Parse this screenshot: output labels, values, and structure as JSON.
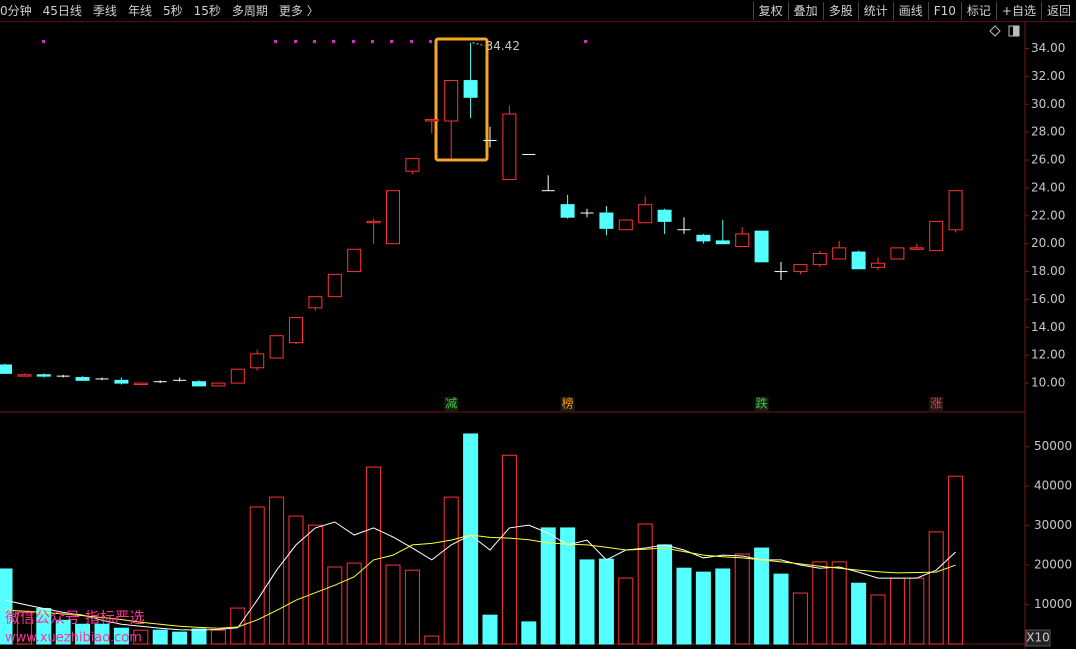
{
  "toolbar": {
    "left": [
      "0分钟",
      "45日线",
      "季线",
      "年线",
      "5秒",
      "15秒",
      "多周期",
      "更多 〉"
    ],
    "right": [
      "复权",
      "叠加",
      "多股",
      "统计",
      "画线",
      "F10",
      "标记",
      "+自选",
      "返回"
    ]
  },
  "watermark": [
    "微信公众号 指标严选",
    "www.xuezhibiao.com"
  ],
  "volume_scale_label": "X10",
  "chart_data": [
    {
      "type": "candlestick",
      "open": [
        11.3,
        10.5,
        10.6,
        10.5,
        10.4,
        10.3,
        10.2,
        9.9,
        10.1,
        10.2,
        10.1,
        9.8,
        10.0,
        11.1,
        11.8,
        12.9,
        15.4,
        16.2,
        18.0,
        21.5,
        20.0,
        25.2,
        28.8,
        28.8,
        31.7,
        27.4,
        24.6,
        26.4,
        23.8,
        22.8,
        22.2,
        22.2,
        21.0,
        21.5,
        22.4,
        21.0,
        20.6,
        20.2,
        19.8,
        20.9,
        18.0,
        18.0,
        18.5,
        18.9,
        19.4,
        18.3,
        18.9,
        19.6,
        19.5,
        21.0
      ],
      "high": [
        11.4,
        10.7,
        10.7,
        10.6,
        10.5,
        10.4,
        10.4,
        10.0,
        10.2,
        10.4,
        10.2,
        10.0,
        11.0,
        12.4,
        13.4,
        14.7,
        16.2,
        17.8,
        19.6,
        21.8,
        23.8,
        26.1,
        28.9,
        31.7,
        34.42,
        28.4,
        29.9,
        26.4,
        24.9,
        23.5,
        22.5,
        22.7,
        21.7,
        23.4,
        22.5,
        21.9,
        20.7,
        21.7,
        21.2,
        20.9,
        18.7,
        18.5,
        19.5,
        20.2,
        19.5,
        19.0,
        19.7,
        20.0,
        21.6,
        23.8
      ],
      "low": [
        10.7,
        10.5,
        10.4,
        10.4,
        10.2,
        10.2,
        9.9,
        9.9,
        10.0,
        10.1,
        9.8,
        9.8,
        10.0,
        10.9,
        11.8,
        12.8,
        15.2,
        16.2,
        18.0,
        20.0,
        20.0,
        25.0,
        27.9,
        26.1,
        29.0,
        26.9,
        24.6,
        26.4,
        23.8,
        21.8,
        21.9,
        20.6,
        21.0,
        21.5,
        20.7,
        20.7,
        20.0,
        20.0,
        19.8,
        18.7,
        17.4,
        17.8,
        18.3,
        18.9,
        18.2,
        18.1,
        18.9,
        19.6,
        19.5,
        20.8
      ],
      "close": [
        10.7,
        10.6,
        10.5,
        10.5,
        10.2,
        10.3,
        10.0,
        10.0,
        10.1,
        10.2,
        9.8,
        10.0,
        11.0,
        12.1,
        13.4,
        14.7,
        16.2,
        17.8,
        19.6,
        21.6,
        23.8,
        26.1,
        28.9,
        31.7,
        30.5,
        27.4,
        29.3,
        26.4,
        23.8,
        21.9,
        22.2,
        21.1,
        21.7,
        22.8,
        21.6,
        21.0,
        20.2,
        20.0,
        20.7,
        18.7,
        18.0,
        18.5,
        19.3,
        19.7,
        18.2,
        18.6,
        19.7,
        19.7,
        21.6,
        23.8
      ],
      "max_label": "34.42",
      "up_color": "#ff3232",
      "down_color": "#54ffff",
      "flat_color": "#ffffff",
      "signals": [
        null,
        null,
        null,
        null,
        null,
        null,
        null,
        null,
        null,
        null,
        null,
        null,
        null,
        null,
        null,
        null,
        null,
        null,
        null,
        null,
        null,
        null,
        null,
        {
          "label": "减",
          "color": "#33cc33"
        },
        null,
        null,
        null,
        null,
        null,
        {
          "label": "榜",
          "color": "#ff9900"
        },
        null,
        null,
        null,
        null,
        null,
        null,
        null,
        null,
        null,
        {
          "label": "跌",
          "color": "#33cc33"
        },
        null,
        null,
        null,
        null,
        null,
        null,
        null,
        null,
        {
          "label": "涨",
          "color": "#ff3232"
        },
        null
      ],
      "ylim": [
        8,
        35.9
      ],
      "yticks": [
        {
          "value": 10,
          "label": "10.00"
        },
        {
          "value": 12,
          "label": "12.00"
        },
        {
          "value": 14,
          "label": "14.00"
        },
        {
          "value": 16,
          "label": "16.00"
        },
        {
          "value": 18,
          "label": "18.00"
        },
        {
          "value": 20,
          "label": "20.00"
        },
        {
          "value": 22,
          "label": "22.00"
        },
        {
          "value": 24,
          "label": "24.00"
        },
        {
          "value": 26,
          "label": "26.00"
        },
        {
          "value": 28,
          "label": "28.00"
        },
        {
          "value": 30,
          "label": "30.00"
        },
        {
          "value": 32,
          "label": "32.00"
        },
        {
          "value": 34,
          "label": "34.00"
        }
      ]
    },
    {
      "type": "bar",
      "values": [
        19000,
        8000,
        9000,
        6000,
        5000,
        5000,
        4000,
        3500,
        3500,
        3000,
        3800,
        3500,
        9100,
        34700,
        37200,
        32400,
        30100,
        19500,
        20500,
        44800,
        20000,
        18700,
        2000,
        37200,
        53200,
        7300,
        47800,
        5600,
        29400,
        29400,
        21300,
        21500,
        16700,
        30400,
        25100,
        19200,
        18200,
        19000,
        22800,
        24300,
        17700,
        12900,
        20800,
        20800,
        15400,
        12400,
        16700,
        16700,
        28400,
        42500
      ],
      "lines": [
        {
          "color": "#ffffff",
          "values": [
            11100,
            10000,
            9000,
            8000,
            7300,
            6000,
            5000,
            4500,
            4000,
            3600,
            3500,
            3700,
            4100,
            11100,
            18700,
            25100,
            29400,
            30900,
            27600,
            29400,
            27100,
            24300,
            21300,
            25100,
            27600,
            23800,
            29400,
            30100,
            28100,
            25100,
            26300,
            21300,
            23800,
            24300,
            25100,
            23800,
            21800,
            22500,
            22300,
            21300,
            21300,
            20000,
            19200,
            19500,
            18200,
            16700,
            16700,
            16700,
            18700,
            23300
          ]
        },
        {
          "color": "#ffff33",
          "values": [
            8600,
            8300,
            8000,
            7600,
            7200,
            6700,
            6200,
            5500,
            5000,
            4500,
            4200,
            4000,
            4300,
            6100,
            8500,
            11100,
            13000,
            14900,
            17000,
            21300,
            22500,
            25100,
            25500,
            26300,
            27600,
            27000,
            26800,
            26400,
            25600,
            25300,
            25100,
            24500,
            23800,
            24000,
            24300,
            23400,
            22500,
            22100,
            21800,
            21300,
            20800,
            20300,
            19700,
            19200,
            18700,
            18300,
            18000,
            18100,
            18200,
            20000
          ]
        }
      ],
      "ylim": [
        0,
        58000
      ],
      "yticks": [
        10000,
        20000,
        30000,
        40000,
        50000
      ]
    }
  ]
}
